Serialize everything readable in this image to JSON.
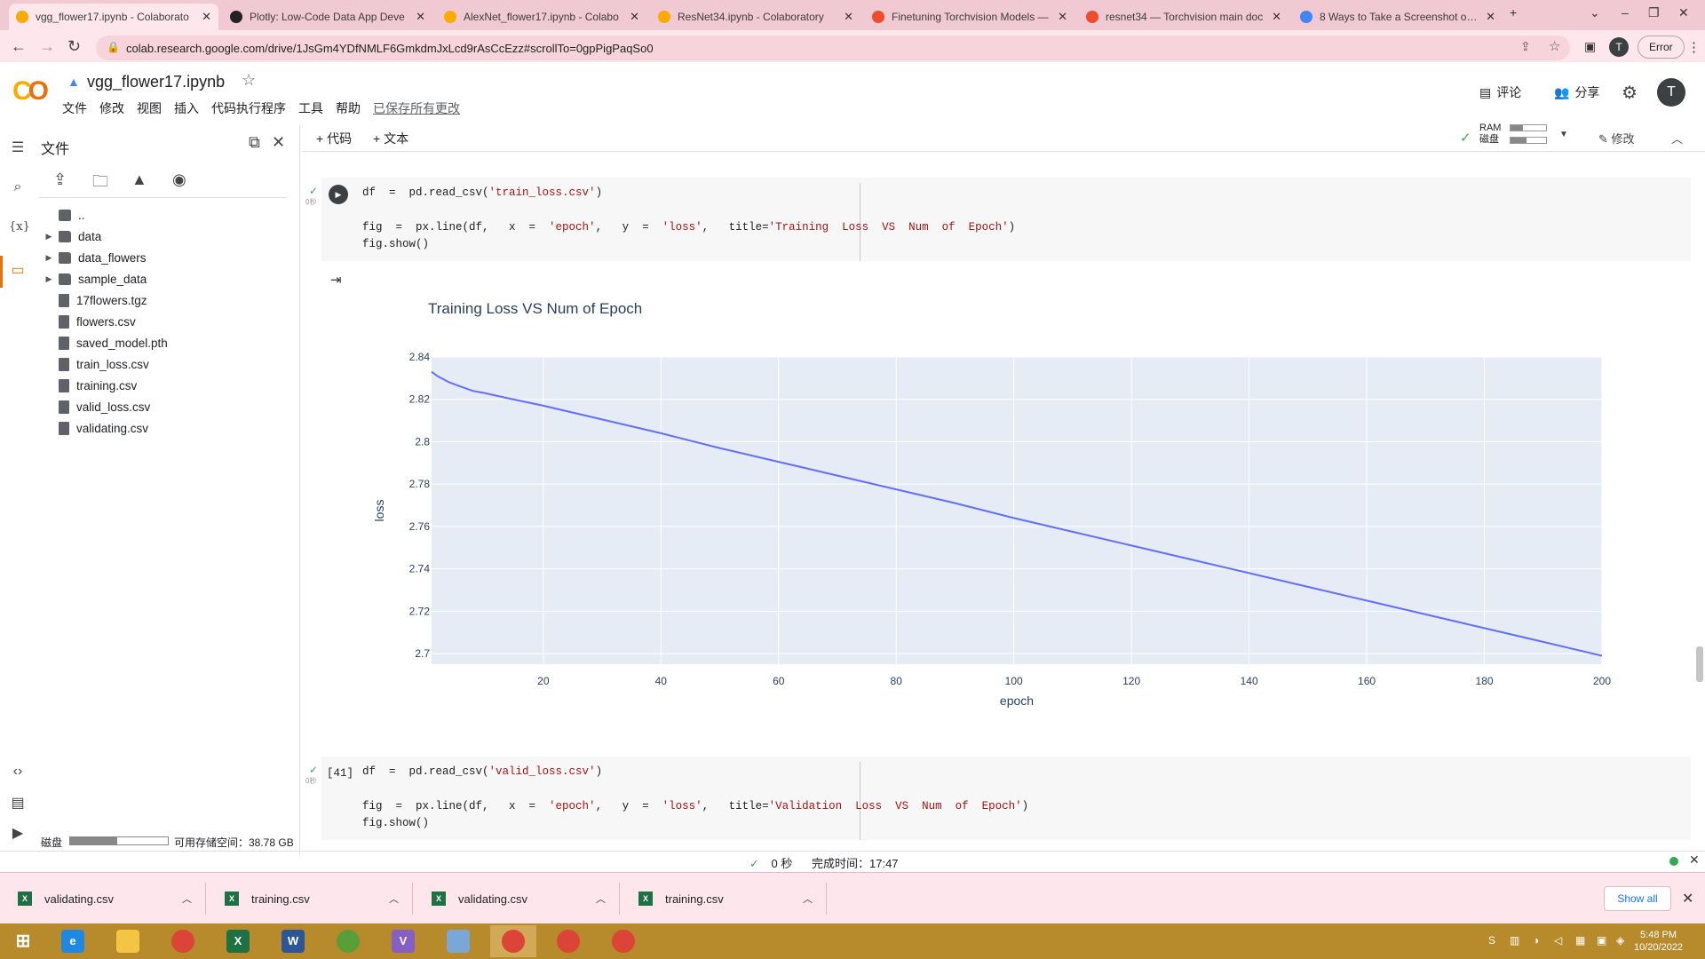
{
  "browser": {
    "tabs": [
      {
        "title": "vgg_flower17.ipynb - Colaborato",
        "icon": "colab-icon",
        "color": "#f9ab00"
      },
      {
        "title": "Plotly: Low-Code Data App Deve",
        "icon": "plotly-icon",
        "color": "#222222"
      },
      {
        "title": "AlexNet_flower17.ipynb - Colabo",
        "icon": "colab-icon",
        "color": "#f9ab00"
      },
      {
        "title": "ResNet34.ipynb - Colaboratory",
        "icon": "colab-icon",
        "color": "#f9ab00"
      },
      {
        "title": "Finetuning Torchvision Models —",
        "icon": "pytorch-icon",
        "color": "#ee4c2c"
      },
      {
        "title": "resnet34 — Torchvision main doc",
        "icon": "pytorch-icon",
        "color": "#ee4c2c"
      },
      {
        "title": "8 Ways to Take a Screenshot on W",
        "icon": "doc-icon",
        "color": "#4285f4"
      }
    ],
    "url": "colab.research.google.com/drive/1JsGm4YDfNMLF6GmkdmJxLcd9rAsCcEzz#scrollTo=0gpPigPaqSo0",
    "profile_initial": "T",
    "error_label": "Error"
  },
  "colab": {
    "title": "vgg_flower17.ipynb",
    "menu": [
      "文件",
      "修改",
      "视图",
      "插入",
      "代码执行程序",
      "工具",
      "帮助"
    ],
    "saved_status": "已保存所有更改",
    "comment_label": "评论",
    "share_label": "分享",
    "avatar_initial": "T"
  },
  "files": {
    "panel_title": "文件",
    "parent": "..",
    "items": [
      {
        "name": "data",
        "type": "folder"
      },
      {
        "name": "data_flowers",
        "type": "folder"
      },
      {
        "name": "sample_data",
        "type": "folder"
      },
      {
        "name": "17flowers.tgz",
        "type": "file"
      },
      {
        "name": "flowers.csv",
        "type": "file"
      },
      {
        "name": "saved_model.pth",
        "type": "file"
      },
      {
        "name": "train_loss.csv",
        "type": "file"
      },
      {
        "name": "training.csv",
        "type": "file"
      },
      {
        "name": "valid_loss.csv",
        "type": "file"
      },
      {
        "name": "validating.csv",
        "type": "file"
      }
    ],
    "disk_label": "磁盘",
    "disk_free": "可用存储空间：38.78 GB",
    "disk_used_fraction": 0.48
  },
  "toolbar": {
    "add_code": "+ 代码",
    "add_text": "+ 文本",
    "ram_label": "RAM",
    "disk_label": "磁盘",
    "ram_fraction": 0.35,
    "disk_fraction": 0.45,
    "edit_label": "修改"
  },
  "cells": {
    "cell1": {
      "line1": "df  =  pd.read_csv(",
      "line1_str": "'train_loss.csv'",
      "line1_end": ")",
      "line2_pre": "fig  =  px.line(df,   x  =  ",
      "line2_s1": "'epoch'",
      "line2_mid": ",   y  =  ",
      "line2_s2": "'loss'",
      "line2_mid2": ",   title=",
      "line2_s3": "'Training  Loss  VS  Num  of  Epoch'",
      "line2_end": ")",
      "line3": "fig.show()",
      "time": "0秒"
    },
    "cell2": {
      "exec_count": "[41]",
      "line1": "df  =  pd.read_csv(",
      "line1_str": "'valid_loss.csv'",
      "line1_end": ")",
      "line2_pre": "fig  =  px.line(df,   x  =  ",
      "line2_s1": "'epoch'",
      "line2_mid": ",   y  =  ",
      "line2_s2": "'loss'",
      "line2_mid2": ",   title=",
      "line2_s3": "'Validation  Loss  VS  Num  of  Epoch'",
      "line2_end": ")",
      "line3": "fig.show()",
      "time": "0秒"
    }
  },
  "chart_data": {
    "type": "line",
    "title": "Training Loss VS Num of Epoch",
    "xlabel": "epoch",
    "ylabel": "loss",
    "xlim": [
      1,
      200
    ],
    "ylim": [
      2.695,
      2.84
    ],
    "xticks": [
      20,
      40,
      60,
      80,
      100,
      120,
      140,
      160,
      180,
      200
    ],
    "yticks": [
      2.7,
      2.72,
      2.74,
      2.76,
      2.78,
      2.8,
      2.82,
      2.84
    ],
    "ytick_labels": [
      "2.7",
      "2.72",
      "2.74",
      "2.76",
      "2.78",
      "2.8",
      "2.82",
      "2.84"
    ],
    "grid": true,
    "line_color": "#636efa",
    "plot_bg": "#e5ecf6",
    "series": [
      {
        "x": [
          1,
          2,
          4,
          6,
          8,
          10,
          14,
          20,
          30,
          40,
          50,
          60,
          70,
          80,
          90,
          100,
          110,
          120,
          130,
          140,
          150,
          160,
          170,
          180,
          190,
          200
        ],
        "y": [
          2.833,
          2.831,
          2.828,
          2.826,
          2.824,
          2.823,
          2.8205,
          2.817,
          2.8105,
          2.804,
          2.797,
          2.7905,
          2.784,
          2.7775,
          2.771,
          2.764,
          2.7575,
          2.751,
          2.7445,
          2.738,
          2.7315,
          2.725,
          2.7185,
          2.712,
          2.7055,
          2.699
        ]
      }
    ]
  },
  "status": {
    "check": "✓",
    "time": "0 秒",
    "finished": "完成时间：17:47"
  },
  "downloads": {
    "items": [
      "validating.csv",
      "training.csv",
      "validating.csv",
      "training.csv"
    ],
    "show_all": "Show all"
  },
  "taskbar": {
    "time": "5:48 PM",
    "date": "10/20/2022"
  }
}
